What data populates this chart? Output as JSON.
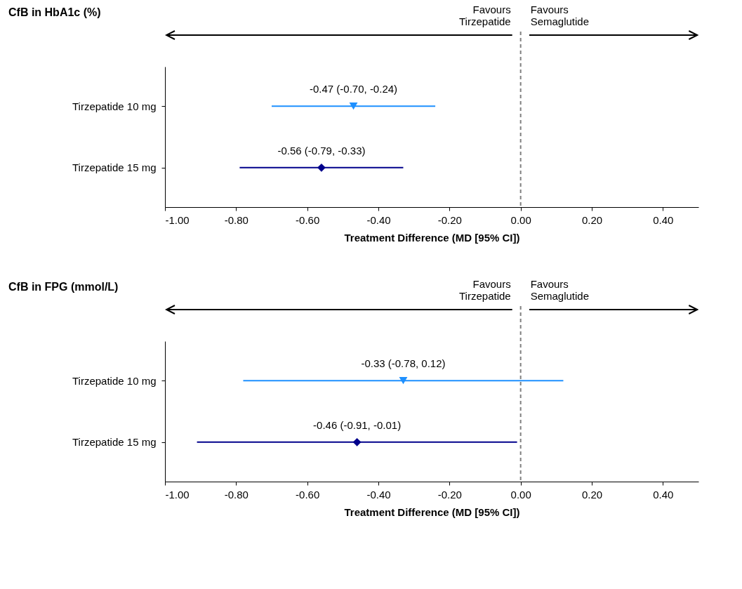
{
  "chart_data": [
    {
      "type": "scatter",
      "orientation": "horizontal",
      "title": "CfB in HbA1c (%)",
      "xlabel": "Treatment Difference (MD [95% CI])",
      "categories": [
        "Tirzepatide 10 mg",
        "Tirzepatide 15 mg"
      ],
      "series": [
        {
          "color": "#1e90ff",
          "marker": "triangle",
          "values": [
            -0.47,
            null
          ],
          "errors": [
            [
              -0.7,
              -0.24
            ],
            null
          ],
          "value_labels": [
            "-0.47 (-0.70, -0.24)",
            null
          ]
        },
        {
          "color": "#00008b",
          "marker": "diamond",
          "values": [
            null,
            -0.56
          ],
          "errors": [
            null,
            [
              -0.79,
              -0.33
            ]
          ],
          "value_labels": [
            null,
            "-0.56 (-0.79, -0.33)"
          ]
        }
      ],
      "xlim": [
        -1,
        0.5
      ],
      "xticks": [
        {
          "value": -1,
          "label": "-1.00"
        },
        {
          "value": -0.8,
          "label": "-0.80"
        },
        {
          "value": -0.6,
          "label": "-0.60"
        },
        {
          "value": -0.4,
          "label": "-0.40"
        },
        {
          "value": -0.2,
          "label": "-0.20"
        },
        {
          "value": 0,
          "label": "0.00"
        },
        {
          "value": 0.2,
          "label": "0.20"
        },
        {
          "value": 0.4,
          "label": "0.40"
        }
      ],
      "ref_lines": [
        {
          "axis": "x",
          "value": 0,
          "color": "#808080",
          "line_style": "dashed"
        }
      ],
      "annotations": [
        "Favours\nTirzepatide",
        "Favours\nSemaglutide"
      ]
    },
    {
      "type": "scatter",
      "orientation": "horizontal",
      "title": "CfB in FPG (mmol/L)",
      "xlabel": "Treatment Difference (MD [95% CI])",
      "categories": [
        "Tirzepatide 10 mg",
        "Tirzepatide 15 mg"
      ],
      "series": [
        {
          "color": "#1e90ff",
          "marker": "triangle",
          "values": [
            -0.33,
            null
          ],
          "errors": [
            [
              -0.78,
              0.12
            ],
            null
          ],
          "value_labels": [
            "-0.33 (-0.78, 0.12)",
            null
          ]
        },
        {
          "color": "#00008b",
          "marker": "diamond",
          "values": [
            null,
            -0.46
          ],
          "errors": [
            null,
            [
              -0.91,
              -0.01
            ]
          ],
          "value_labels": [
            null,
            "-0.46 (-0.91, -0.01)"
          ]
        }
      ],
      "xlim": [
        -1,
        0.5
      ],
      "xticks": [
        {
          "value": -1,
          "label": "-1.00"
        },
        {
          "value": -0.8,
          "label": "-0.80"
        },
        {
          "value": -0.6,
          "label": "-0.60"
        },
        {
          "value": -0.4,
          "label": "-0.40"
        },
        {
          "value": -0.2,
          "label": "-0.20"
        },
        {
          "value": 0,
          "label": "0.00"
        },
        {
          "value": 0.2,
          "label": "0.20"
        },
        {
          "value": 0.4,
          "label": "0.40"
        }
      ],
      "ref_lines": [
        {
          "axis": "x",
          "value": 0,
          "color": "#808080",
          "line_style": "dashed"
        }
      ],
      "annotations": [
        "Favours\nTirzepatide",
        "Favours\nSemaglutide"
      ]
    }
  ]
}
